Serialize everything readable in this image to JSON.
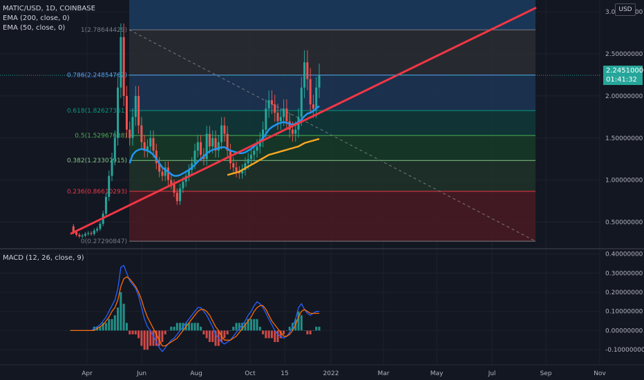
{
  "legend": {
    "symbol": "MATIC/USD, 1D, COINBASE",
    "ema200": "EMA (200, close, 0)",
    "ema50": "EMA (50, close, 0)"
  },
  "macd_label": "MACD (12, 26, close, 9)",
  "currency_label": "USD",
  "last_price": "2.24510000",
  "countdown": "01:41:32",
  "colors": {
    "background": "#131722",
    "grid": "#1e222d",
    "trendline": "#f23645",
    "ema50": "#2196f3",
    "ema200": "#f5a623",
    "macd_line": "#2962ff",
    "signal_line": "#ff6d00",
    "hist_up": "#26a69a",
    "hist_down": "#ef5350",
    "candle_up": "#26a69a",
    "candle_down": "#ef5350"
  },
  "chart_data": {
    "type": "candlestick",
    "x_ticks": [
      "Apr",
      "Jun",
      "Aug",
      "Oct",
      "15",
      "2022",
      "Mar",
      "May",
      "Jul",
      "Sep",
      "Nov"
    ],
    "price_axis": {
      "ticks": [
        0.5,
        1.0,
        1.5,
        2.0,
        2.5,
        3.0
      ],
      "tick_labels": [
        "0.50000000",
        "1.00000000",
        "1.50000000",
        "2.00000000",
        "2.50000000",
        "3.00000000"
      ],
      "range": [
        0.2,
        3.1
      ]
    },
    "fibonacci": [
      {
        "label": "1(2.78644429)",
        "value": 2.78644429,
        "color": "#787b86"
      },
      {
        "label": "0.786(2.24854762)",
        "value": 2.24854762,
        "color": "#5b9cf6"
      },
      {
        "label": "0.618(1.82627361)",
        "value": 1.82627361,
        "color": "#089981"
      },
      {
        "label": "0.5(1.52967638)",
        "value": 1.52967638,
        "color": "#4caf50"
      },
      {
        "label": "0.382(1.23307915)",
        "value": 1.23307915,
        "color": "#81c784"
      },
      {
        "label": "0.236(0.86610293)",
        "value": 0.86610293,
        "color": "#f23645"
      },
      {
        "label": "0(0.27290847)",
        "value": 0.27290847,
        "color": "#787b86"
      }
    ],
    "price_series": [
      0.45,
      0.38,
      0.35,
      0.33,
      0.34,
      0.36,
      0.37,
      0.36,
      0.4,
      0.42,
      0.48,
      0.6,
      0.8,
      1.05,
      1.25,
      1.5,
      2.1,
      2.7,
      2.0,
      1.6,
      1.5,
      1.75,
      2.0,
      1.65,
      1.45,
      1.35,
      1.4,
      1.5,
      1.35,
      1.2,
      1.1,
      1.05,
      1.15,
      1.0,
      0.95,
      0.85,
      0.75,
      0.9,
      0.98,
      1.05,
      1.12,
      1.2,
      1.35,
      1.45,
      1.3,
      1.25,
      1.55,
      1.4,
      1.5,
      1.35,
      1.45,
      1.65,
      1.55,
      1.35,
      1.2,
      1.15,
      1.1,
      1.08,
      1.12,
      1.2,
      1.25,
      1.3,
      1.35,
      1.4,
      1.48,
      1.6,
      1.85,
      1.95,
      1.9,
      1.8,
      1.7,
      1.75,
      1.85,
      1.7,
      1.6,
      1.55,
      1.6,
      1.75,
      2.1,
      2.4,
      2.2,
      1.9,
      1.85,
      2.1,
      2.25
    ],
    "ema50": [
      null,
      null,
      null,
      null,
      null,
      null,
      null,
      null,
      null,
      null,
      null,
      null,
      null,
      null,
      null,
      null,
      null,
      null,
      null,
      null,
      1.2,
      1.3,
      1.34,
      1.36,
      1.37,
      1.36,
      1.35,
      1.33,
      1.3,
      1.25,
      1.2,
      1.15,
      1.12,
      1.1,
      1.07,
      1.05,
      1.05,
      1.06,
      1.08,
      1.1,
      1.12,
      1.15,
      1.18,
      1.22,
      1.25,
      1.28,
      1.32,
      1.34,
      1.36,
      1.37,
      1.38,
      1.39,
      1.39,
      1.37,
      1.35,
      1.34,
      1.33,
      1.32,
      1.32,
      1.33,
      1.35,
      1.37,
      1.4,
      1.43,
      1.46,
      1.5,
      1.55,
      1.6,
      1.63,
      1.65,
      1.67,
      1.68,
      1.69,
      1.68,
      1.67,
      1.66,
      1.67,
      1.69,
      1.72,
      1.76,
      1.79,
      1.8,
      1.82,
      1.85,
      1.88
    ],
    "ema200": [
      null,
      null,
      null,
      null,
      null,
      null,
      null,
      null,
      null,
      null,
      null,
      null,
      null,
      null,
      null,
      null,
      null,
      null,
      null,
      null,
      null,
      null,
      null,
      null,
      null,
      null,
      null,
      null,
      null,
      null,
      null,
      null,
      null,
      null,
      null,
      null,
      null,
      null,
      null,
      null,
      null,
      null,
      null,
      null,
      null,
      null,
      null,
      null,
      null,
      null,
      null,
      null,
      null,
      1.06,
      1.07,
      1.08,
      1.09,
      1.1,
      1.12,
      1.14,
      1.16,
      1.18,
      1.2,
      1.22,
      1.24,
      1.26,
      1.28,
      1.3,
      1.31,
      1.32,
      1.33,
      1.34,
      1.35,
      1.36,
      1.37,
      1.38,
      1.39,
      1.4,
      1.42,
      1.44,
      1.45,
      1.46,
      1.47,
      1.48,
      1.49
    ],
    "macd_axis": {
      "ticks": [
        -0.1,
        0.0,
        0.1,
        0.2,
        0.3,
        0.4
      ],
      "tick_labels": [
        "-0.10000000",
        "0.00000000",
        "0.10000000",
        "0.20000000",
        "0.30000000",
        "0.40000000"
      ],
      "range": [
        -0.15,
        0.42
      ]
    },
    "macd": [
      0.0,
      0.0,
      0.0,
      0.0,
      0.0,
      0.0,
      0.0,
      0.0,
      0.01,
      0.02,
      0.03,
      0.05,
      0.07,
      0.1,
      0.13,
      0.16,
      0.22,
      0.33,
      0.34,
      0.3,
      0.26,
      0.24,
      0.22,
      0.18,
      0.12,
      0.06,
      0.02,
      0.0,
      -0.03,
      -0.06,
      -0.09,
      -0.11,
      -0.09,
      -0.07,
      -0.05,
      -0.04,
      -0.02,
      0.0,
      0.02,
      0.04,
      0.06,
      0.08,
      0.1,
      0.12,
      0.12,
      0.1,
      0.08,
      0.05,
      0.02,
      -0.02,
      -0.04,
      -0.06,
      -0.07,
      -0.06,
      -0.05,
      -0.03,
      -0.01,
      0.01,
      0.03,
      0.05,
      0.08,
      0.1,
      0.13,
      0.15,
      0.14,
      0.12,
      0.09,
      0.06,
      0.03,
      0.0,
      -0.02,
      -0.03,
      -0.04,
      -0.03,
      -0.01,
      0.02,
      0.06,
      0.12,
      0.14,
      0.11,
      0.09,
      0.08,
      0.09,
      0.1,
      0.1
    ],
    "signal": [
      0.0,
      0.0,
      0.0,
      0.0,
      0.0,
      0.0,
      0.0,
      0.0,
      0.0,
      0.01,
      0.02,
      0.03,
      0.05,
      0.07,
      0.1,
      0.12,
      0.16,
      0.23,
      0.27,
      0.28,
      0.27,
      0.25,
      0.23,
      0.2,
      0.16,
      0.11,
      0.07,
      0.04,
      0.01,
      -0.02,
      -0.05,
      -0.08,
      -0.08,
      -0.07,
      -0.06,
      -0.05,
      -0.04,
      -0.02,
      0.0,
      0.02,
      0.04,
      0.06,
      0.08,
      0.1,
      0.11,
      0.11,
      0.1,
      0.08,
      0.05,
      0.02,
      0.0,
      -0.03,
      -0.05,
      -0.05,
      -0.05,
      -0.04,
      -0.03,
      -0.01,
      0.01,
      0.03,
      0.05,
      0.07,
      0.1,
      0.12,
      0.13,
      0.13,
      0.11,
      0.08,
      0.05,
      0.03,
      0.01,
      -0.01,
      -0.03,
      -0.03,
      -0.02,
      0.0,
      0.03,
      0.07,
      0.1,
      0.11,
      0.1,
      0.09,
      0.09,
      0.09,
      0.09
    ]
  }
}
